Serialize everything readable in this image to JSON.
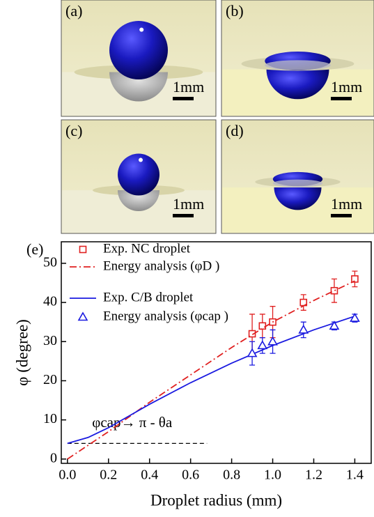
{
  "panels": [
    {
      "label": "(a)",
      "scale": "1mm"
    },
    {
      "label": "(b)",
      "scale": "1mm"
    },
    {
      "label": "(c)",
      "scale": "1mm"
    },
    {
      "label": "(d)",
      "scale": "1mm"
    }
  ],
  "chart_data": {
    "type": "scatter",
    "panel_label": "(e)",
    "xlabel": "Droplet radius (mm)",
    "ylabel": "φ (degree)",
    "xlim": [
      -0.03,
      1.48
    ],
    "ylim": [
      -1.1,
      55.5
    ],
    "xticks": [
      {
        "value": 0,
        "label": "0.0"
      },
      0.2,
      0.4,
      0.6,
      0.8,
      {
        "value": 1,
        "label": "1.0"
      },
      1.2,
      1.4
    ],
    "yticks": [
      0,
      10,
      20,
      30,
      40,
      50
    ],
    "series": [
      {
        "name": "Exp. NC droplet",
        "color": "#e02020",
        "kind": "markers",
        "marker": "square",
        "x": [
          0.9,
          0.95,
          1.0,
          1.15,
          1.3,
          1.4
        ],
        "values": [
          32,
          34,
          35,
          40,
          43,
          46
        ],
        "errors": [
          5,
          3,
          4,
          2,
          3,
          2
        ]
      },
      {
        "name": "Energy analysis (φD )",
        "color": "#e02020",
        "kind": "line",
        "dash": "dashdot",
        "x": [
          0,
          0.2,
          0.4,
          0.6,
          0.8,
          1.0,
          1.2,
          1.4
        ],
        "values": [
          0,
          7,
          14.5,
          21.5,
          28.5,
          35,
          40.5,
          45.5
        ]
      },
      {
        "name": "Exp. C/B droplet",
        "color": "#1a1ae0",
        "kind": "line",
        "dash": "solid",
        "x": [
          0,
          0.1,
          0.2,
          0.3,
          0.4,
          0.6,
          0.8,
          1.0,
          1.2,
          1.4
        ],
        "values": [
          4,
          5.5,
          8,
          11,
          14,
          19.5,
          24.5,
          29,
          33,
          36.5
        ]
      },
      {
        "name": "Energy analysis (φcap )",
        "color": "#1a1ae0",
        "kind": "markers",
        "marker": "triangle",
        "x": [
          0.9,
          0.95,
          1.0,
          1.15,
          1.3,
          1.4
        ],
        "values": [
          27,
          29,
          30,
          33,
          34,
          36
        ],
        "errors": [
          3,
          2,
          3,
          2,
          1,
          1
        ]
      }
    ],
    "reference_line": {
      "y": 4,
      "x": [
        0,
        0.68
      ],
      "label": "φcap→ π - θa"
    }
  }
}
